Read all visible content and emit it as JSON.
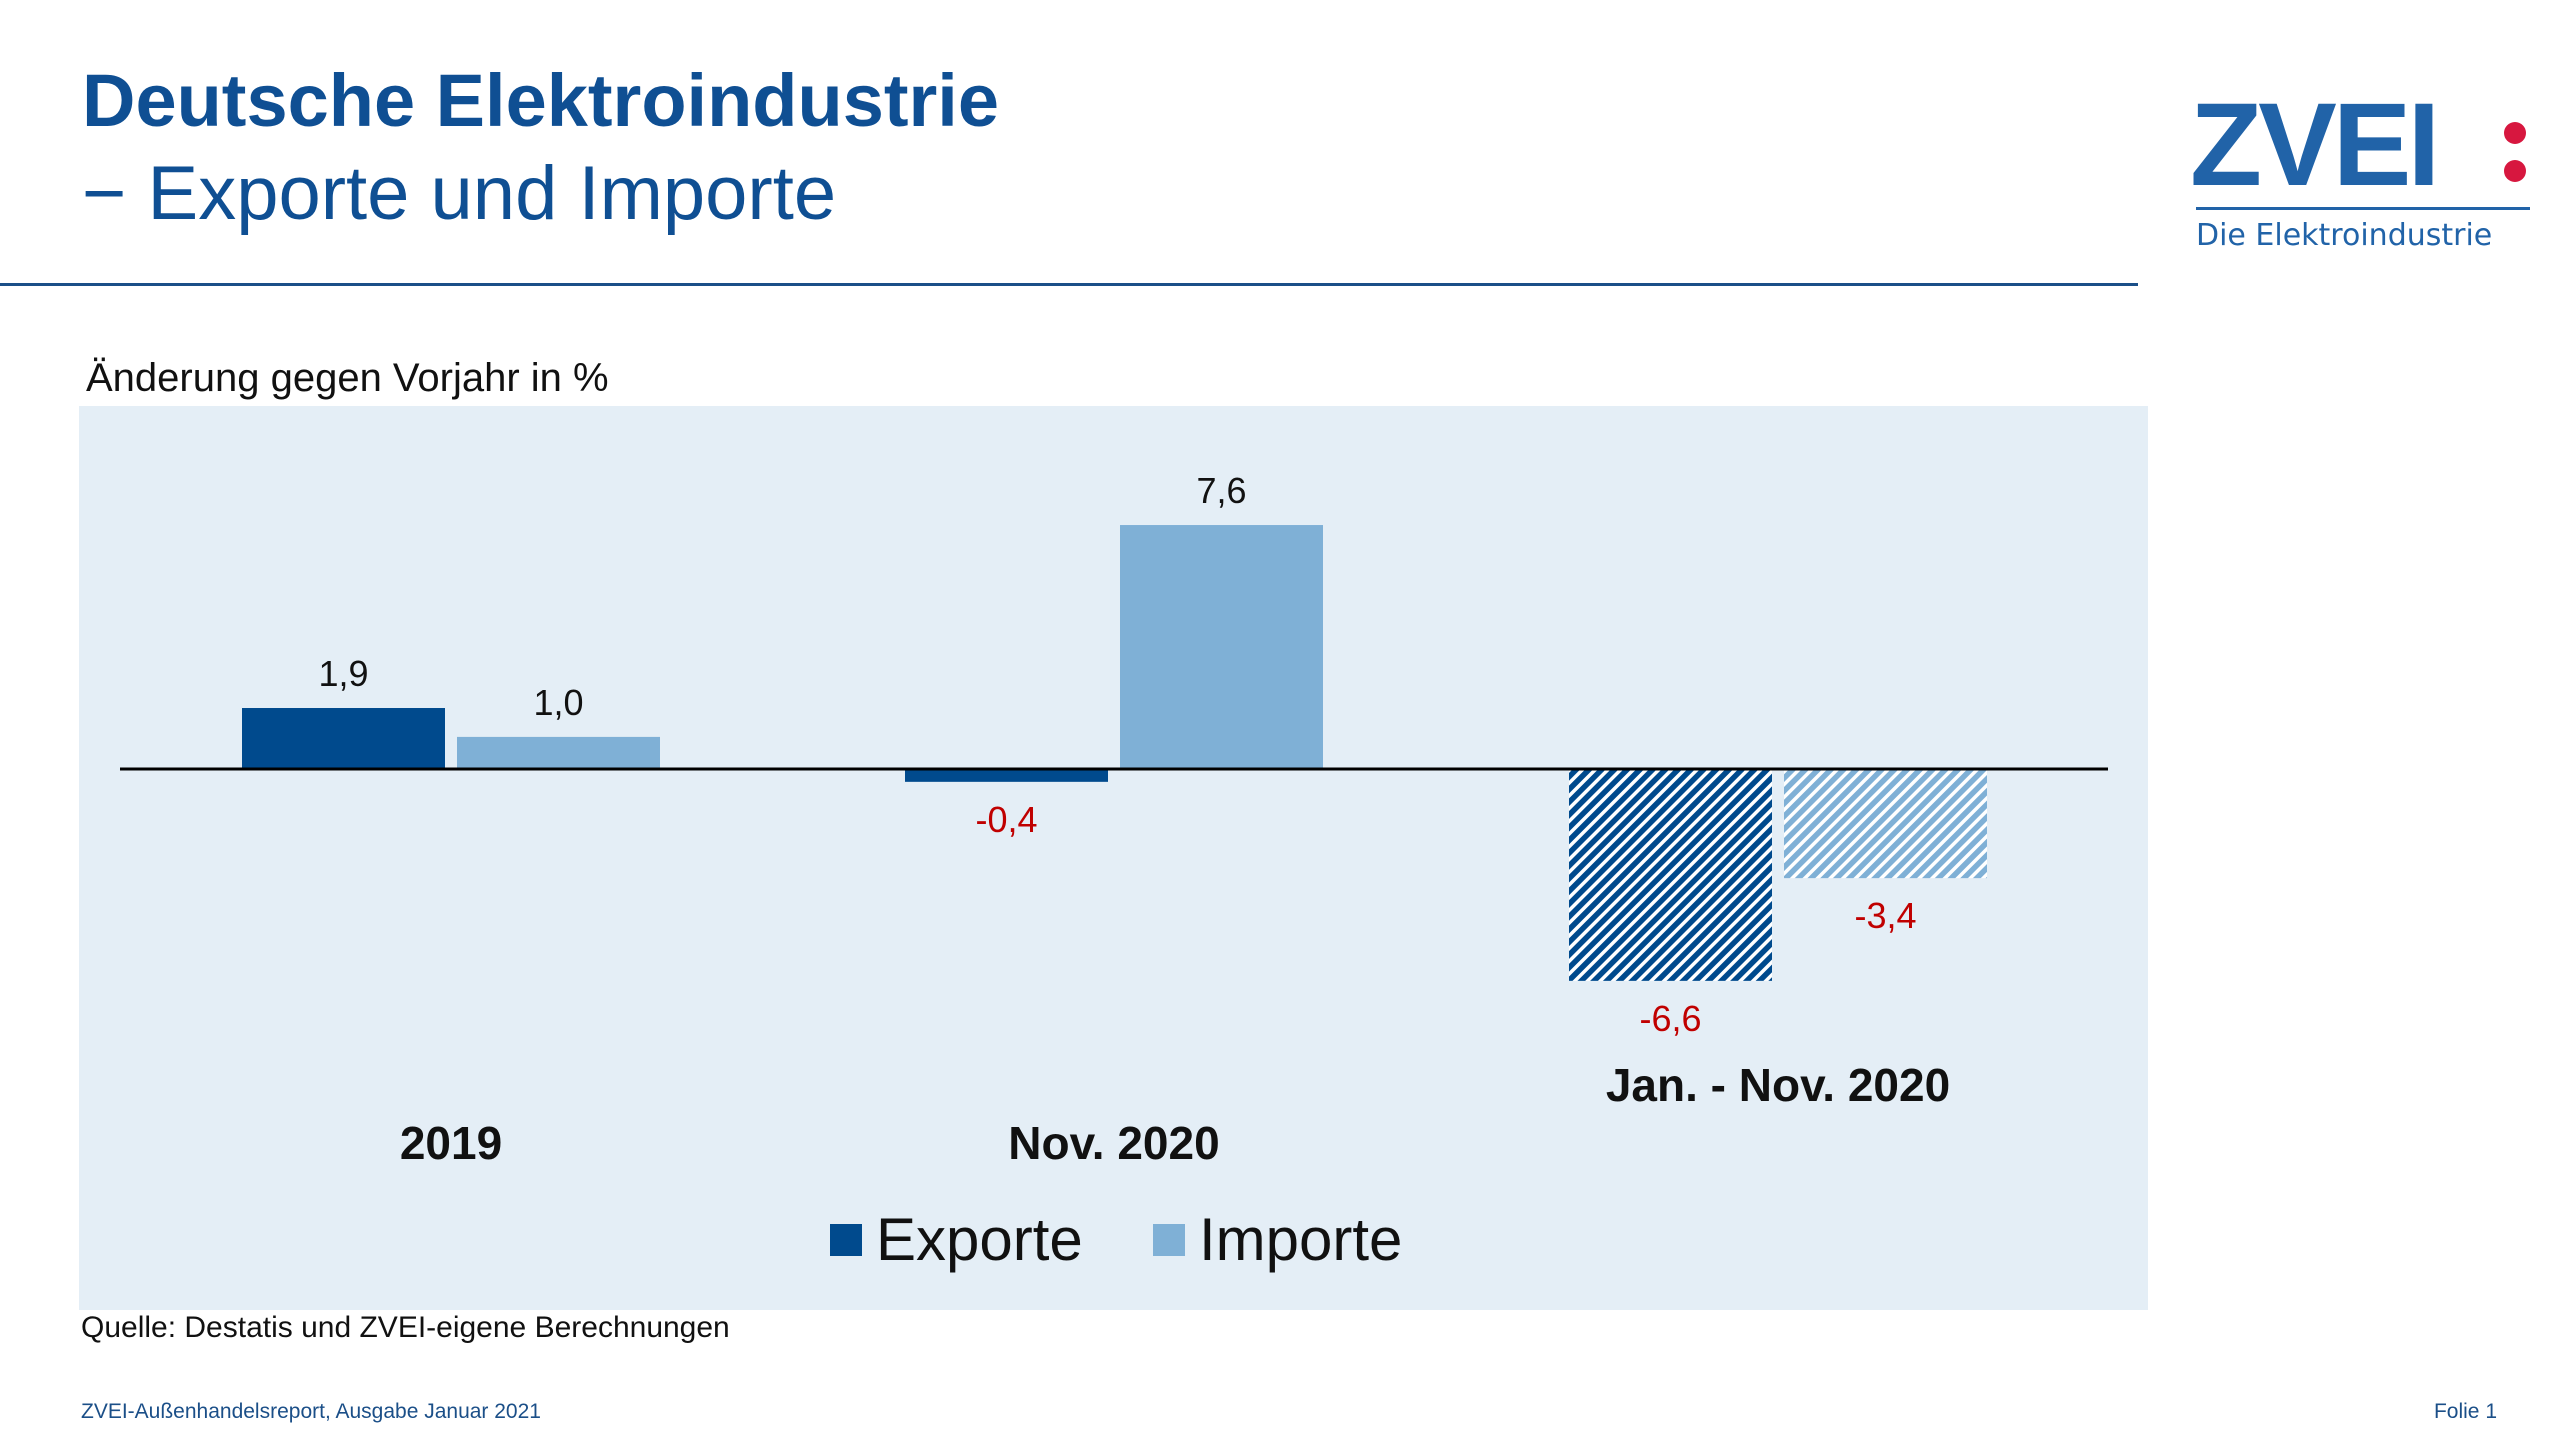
{
  "header": {
    "title": "Deutsche Elektroindustrie",
    "subtitle": "− Exporte und Importe"
  },
  "logo": {
    "text": "ZVEI:",
    "tagline": "Die Elektroindustrie"
  },
  "chart_data": {
    "type": "bar",
    "title": "",
    "ylabel": "Änderung gegen Vorjahr in %",
    "categories": [
      "2019",
      "Nov. 2020",
      "Jan. - Nov. 2020"
    ],
    "series": [
      {
        "name": "Exporte",
        "values": [
          1.9,
          -0.4,
          -6.6
        ],
        "labels": [
          "1,9",
          "-0,4",
          "-6,6"
        ],
        "color": "#004a8d"
      },
      {
        "name": "Importe",
        "values": [
          1.0,
          7.6,
          -3.4
        ],
        "labels": [
          "1,0",
          "7,6",
          "-3,4"
        ],
        "color": "#7fb0d6"
      }
    ],
    "hatched_categories": [
      "Jan. - Nov. 2020"
    ],
    "negative_label_color": "#c00000",
    "positive_label_color": "#111111",
    "legend": "bottom-center",
    "grid": false
  },
  "source": "Quelle: Destatis und ZVEI-eigene Berechnungen",
  "footer": {
    "left": "ZVEI-Außenhandelsreport, Ausgabe Januar 2021",
    "right": "Folie 1"
  }
}
